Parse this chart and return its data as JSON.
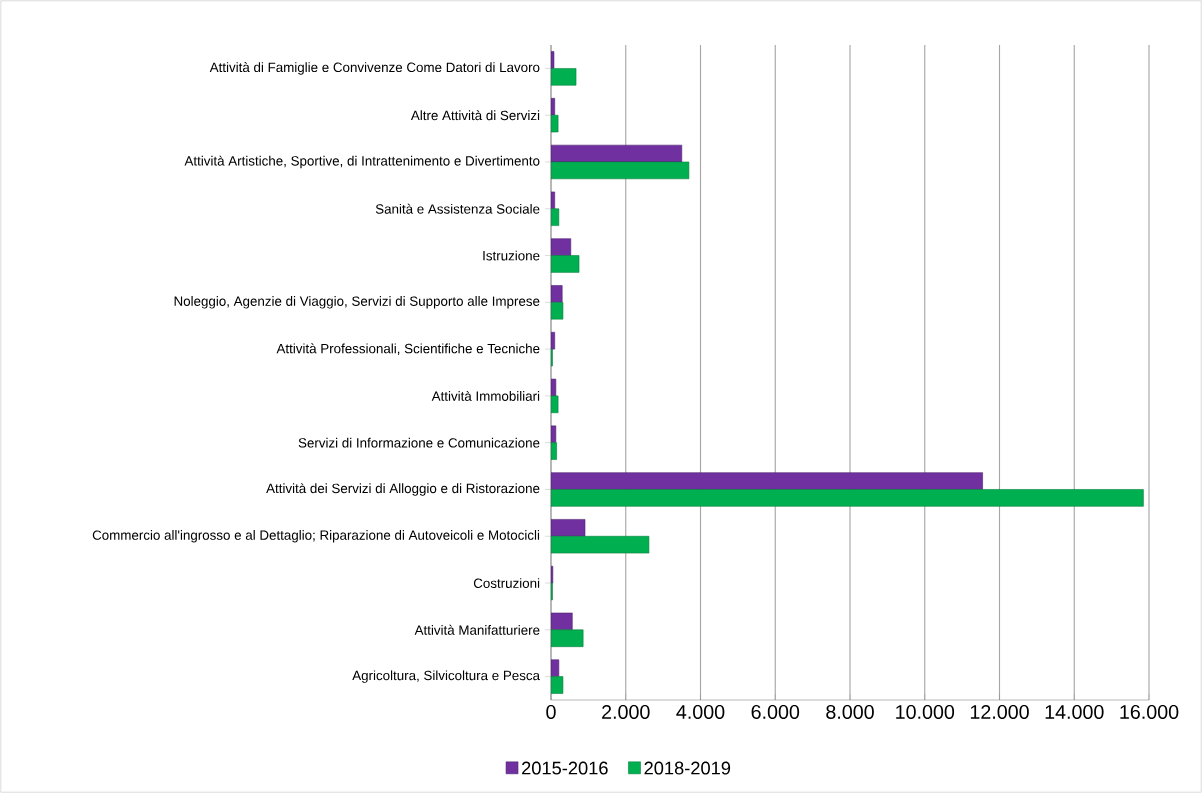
{
  "chart_data": {
    "type": "bar",
    "orientation": "horizontal",
    "categories": [
      "Attività di Famiglie e Convivenze Come Datori di Lavoro",
      "Altre Attività di Servizi",
      "Attività Artistiche, Sportive, di Intrattenimento e Divertimento",
      "Sanità e Assistenza Sociale",
      "Istruzione",
      "Noleggio, Agenzie di Viaggio, Servizi di Supporto alle Imprese",
      "Attività Professionali, Scientifiche e Tecniche",
      "Attività Immobiliari",
      "Servizi di Informazione e Comunicazione",
      "Attività dei Servizi di Alloggio e di Ristorazione",
      "Commercio all'ingrosso e al Dettaglio; Riparazione di Autoveicoli e Motocicli",
      "Costruzioni",
      "Attività Manifatturiere",
      "Agricoltura, Silvicoltura e Pesca"
    ],
    "series": [
      {
        "name": "2015-2016",
        "color": "#7030a0",
        "values": [
          80,
          100,
          3500,
          100,
          530,
          300,
          100,
          130,
          130,
          11550,
          910,
          50,
          570,
          210
        ]
      },
      {
        "name": "2018-2019",
        "color": "#00b050",
        "values": [
          670,
          190,
          3690,
          210,
          750,
          320,
          40,
          190,
          150,
          15850,
          2620,
          40,
          860,
          320
        ]
      }
    ],
    "xlim": [
      0,
      16000
    ],
    "xticks": [
      0,
      {
        "value": 2000,
        "label": "2.000"
      },
      {
        "value": 4000,
        "label": "4.000"
      },
      {
        "value": 6000,
        "label": "6.000"
      },
      {
        "value": 8000,
        "label": "8.000"
      },
      {
        "value": 10000,
        "label": "10.000"
      },
      {
        "value": 12000,
        "label": "12.000"
      },
      {
        "value": 14000,
        "label": "14.000"
      },
      {
        "value": 16000,
        "label": "16.000"
      }
    ],
    "grid": "x",
    "legend": "bottom"
  }
}
